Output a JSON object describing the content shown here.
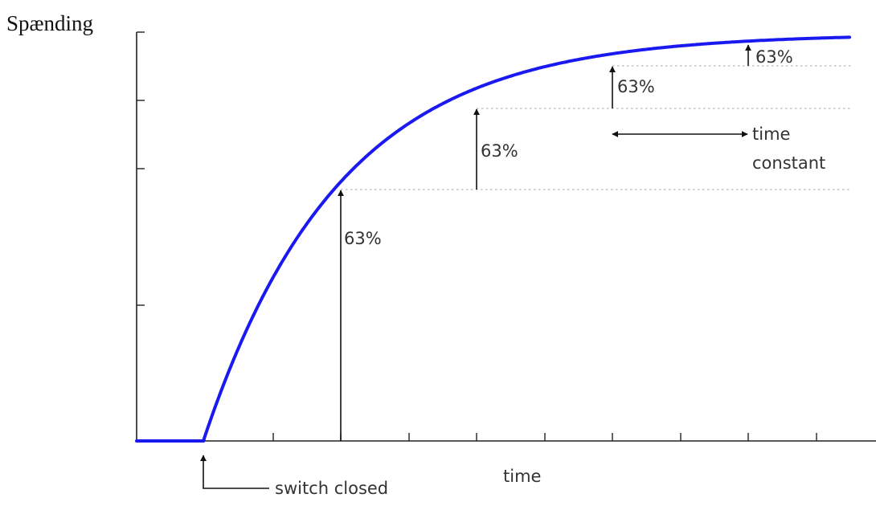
{
  "diagram": {
    "y_axis_label": "Spænding",
    "x_axis_label": "time",
    "step_label": "63%",
    "time_constant_label_line1": "time",
    "time_constant_label_line2": "constant",
    "switch_label": "switch closed",
    "curve_color": "#1a1af0",
    "axis_color": "#222222",
    "guide_color": "#b8b8b8",
    "guide_style": "dotted",
    "arrow_icon": "arrow-up-icon",
    "time_constant_icon": "double-arrow-horizontal-icon"
  }
}
